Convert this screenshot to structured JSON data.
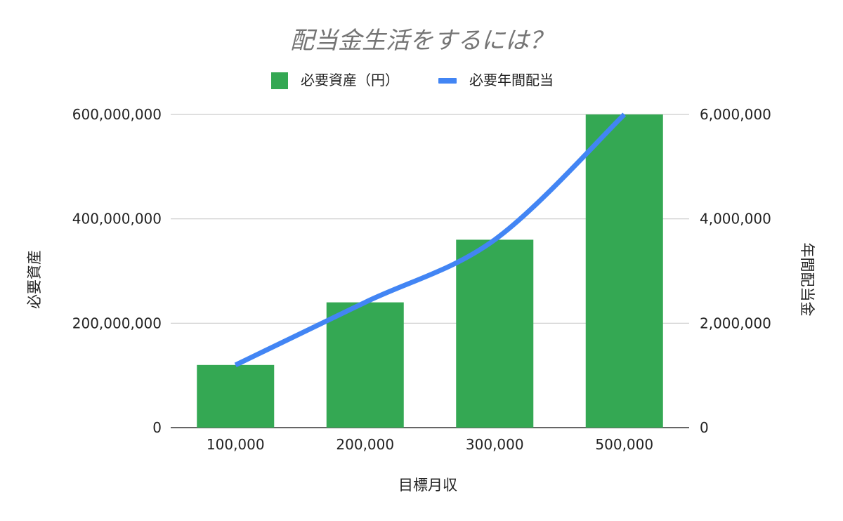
{
  "chart_data": {
    "type": "bar",
    "title": "配当金生活をするには？",
    "xlabel": "目標月収",
    "ylabel": "必要資産",
    "y2label": "年間配当金",
    "categories": [
      "100,000",
      "200,000",
      "300,000",
      "500,000"
    ],
    "series": [
      {
        "name": "必要資産（円）",
        "type": "bar",
        "axis": "left",
        "color": "#34a853",
        "values": [
          120000000,
          240000000,
          360000000,
          600000000
        ]
      },
      {
        "name": "必要年間配当",
        "type": "line",
        "axis": "right",
        "color": "#4285f4",
        "values": [
          1200000,
          2400000,
          3600000,
          6000000
        ]
      }
    ],
    "ylim": [
      0,
      600000000
    ],
    "y2lim": [
      0,
      6000000
    ],
    "yticks": [
      "0",
      "200,000,000",
      "400,000,000",
      "600,000,000"
    ],
    "y2ticks": [
      "0",
      "2,000,000",
      "4,000,000",
      "6,000,000"
    ],
    "grid": true,
    "legend": "top"
  }
}
